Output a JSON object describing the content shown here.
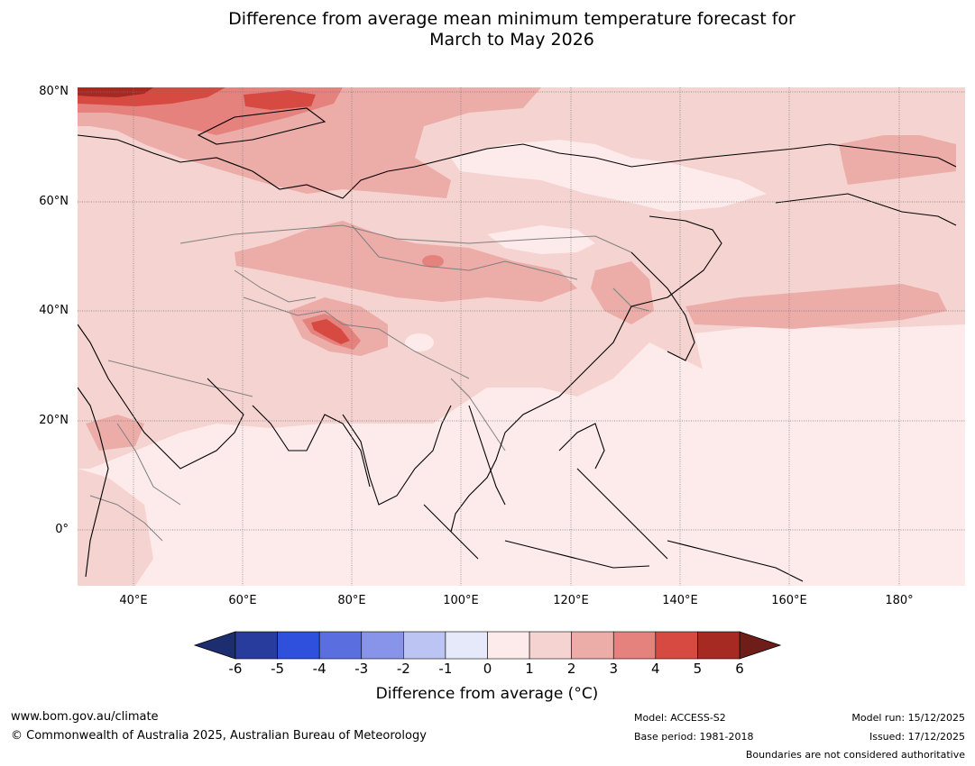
{
  "title": {
    "line1": "Difference from average mean minimum temperature forecast for",
    "line2": "March to May 2026"
  },
  "map": {
    "lat_labels": [
      "80°N",
      "60°N",
      "40°N",
      "20°N",
      "0°"
    ],
    "lon_labels": [
      "40°E",
      "60°E",
      "80°E",
      "100°E",
      "120°E",
      "140°E",
      "160°E",
      "180°"
    ],
    "ocean_color": "#fcebea",
    "land_base_color": "#f5d3d0",
    "coastline_color": "#000000",
    "boundary_color": "#808080"
  },
  "colorbar": {
    "ticks": [
      "-6",
      "-5",
      "-4",
      "-3",
      "-2",
      "-1",
      "0",
      "1",
      "2",
      "3",
      "4",
      "5",
      "6"
    ],
    "colors": [
      "#283c9e",
      "#2f4fdd",
      "#5a6ee0",
      "#8794ea",
      "#bcc4f3",
      "#e6e9f9",
      "#fcebea",
      "#f5d3d0",
      "#ecaca8",
      "#e5827d",
      "#d64a42",
      "#a72a22"
    ],
    "under_color": "#1c2d70",
    "over_color": "#6e1d19",
    "label": "Difference from average (",
    "label_unit": "°C)"
  },
  "footer": {
    "website": "www.bom.gov.au/climate",
    "copyright": "© Commonwealth of Australia 2025, Australian Bureau of Meteorology",
    "model": "Model: ACCESS-S2",
    "base_period": "Base period: 1981-2018",
    "model_run": "Model run: 15/12/2025",
    "issued": "Issued: 17/12/2025",
    "disclaimer": "Boundaries are not considered authoritative"
  }
}
